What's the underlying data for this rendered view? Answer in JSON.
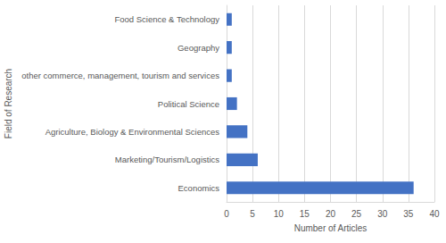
{
  "chart_data": {
    "type": "bar",
    "orientation": "horizontal",
    "x_label": "Number of Articles",
    "y_label": "Field of Research",
    "categories": [
      "Economics",
      "Marketing/Tourism/Logistics",
      "Agriculture, Biology & Environmental Sciences",
      "Political Science",
      "other commerce, management, tourism and services",
      "Geography",
      "Food Science & Technology"
    ],
    "values": [
      36,
      6,
      4,
      2,
      1,
      1,
      1
    ],
    "color": "#4472c4",
    "xlim": [
      0,
      40
    ],
    "xticks": [
      0,
      5,
      10,
      15,
      20,
      25,
      30,
      35,
      40
    ],
    "grid": true
  }
}
